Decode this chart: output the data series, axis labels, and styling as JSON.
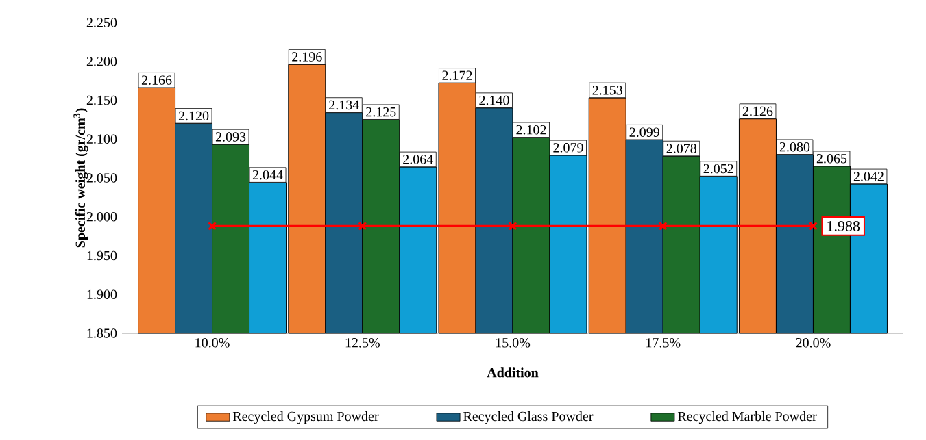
{
  "chart_data": {
    "type": "bar",
    "xlabel": "Addition",
    "ylabel": "Specific weight (gr/cm$^{3}$)",
    "categories": [
      "10.0%",
      "12.5%",
      "15.0%",
      "17.5%",
      "20.0%"
    ],
    "ylim": [
      1.85,
      2.25
    ],
    "yticks": [
      {
        "value": 1.85,
        "label": "1.850"
      },
      {
        "value": 1.9,
        "label": "1.900"
      },
      {
        "value": 1.95,
        "label": "1.950"
      },
      {
        "value": 2.0,
        "label": "2.000"
      },
      {
        "value": 2.05,
        "label": "2.050"
      },
      {
        "value": 2.1,
        "label": "2.100"
      },
      {
        "value": 2.15,
        "label": "2.150"
      },
      {
        "value": 2.2,
        "label": "2.200"
      },
      {
        "value": 2.25,
        "label": "2.250"
      }
    ],
    "grid": false,
    "legend": "bottom",
    "series": [
      {
        "name": "Recycled Gypsum Powder",
        "color": "#ed7d31",
        "values": [
          2.166,
          2.196,
          2.172,
          2.153,
          2.126
        ],
        "value_labels": [
          "2.166",
          "2.196",
          "2.172",
          "2.153",
          "2.126"
        ]
      },
      {
        "name": "Recycled Glass Powder",
        "color": "#1a5f82",
        "values": [
          2.12,
          2.134,
          2.14,
          2.099,
          2.08
        ],
        "value_labels": [
          "2.120",
          "2.134",
          "2.140",
          "2.099",
          "2.080"
        ]
      },
      {
        "name": "Recycled Marble Powder",
        "color": "#1e6e2a",
        "values": [
          2.093,
          2.125,
          2.102,
          2.078,
          2.065
        ],
        "value_labels": [
          "2.093",
          "2.125",
          "2.102",
          "2.078",
          "2.065"
        ]
      },
      {
        "color": "#109fd6",
        "values": [
          2.044,
          2.064,
          2.079,
          2.052,
          2.042
        ],
        "value_labels": [
          "2.044",
          "2.064",
          "2.079",
          "2.052",
          "2.042"
        ]
      },
      {
        "type": "line",
        "color": "#ff0000",
        "marker": "cross",
        "values": [
          1.988,
          1.988,
          1.988,
          1.988,
          1.988
        ],
        "value_labels": [
          null,
          null,
          null,
          null,
          "1.988"
        ]
      }
    ]
  }
}
